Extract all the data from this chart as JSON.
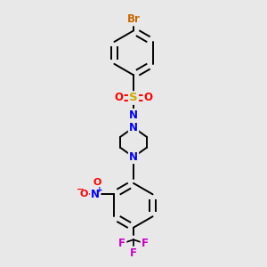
{
  "bg_color": "#e8e8e8",
  "bond_color": "#000000",
  "bond_width": 1.4,
  "atom_colors": {
    "Br": "#cc6600",
    "S": "#ccaa00",
    "O": "#ff0000",
    "N": "#0000ff",
    "F": "#cc00cc",
    "C": "#000000"
  },
  "font_size": 8.5,
  "fig_size": [
    3.0,
    3.0
  ],
  "dpi": 100,
  "xlim": [
    -0.5,
    1.5
  ],
  "ylim": [
    -1.1,
    2.8
  ]
}
